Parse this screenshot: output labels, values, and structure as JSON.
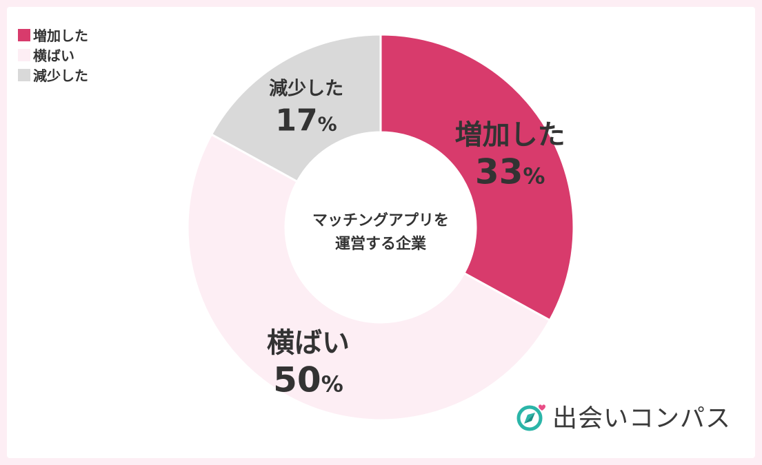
{
  "chart_data": {
    "type": "pie",
    "categories": [
      "増加した",
      "横ばい",
      "減少した"
    ],
    "values": [
      33,
      50,
      17
    ],
    "unit": "%",
    "colors": [
      "#d83b6c",
      "#fdeef4",
      "#d9d9d9"
    ],
    "center_label": [
      "マッチングアプリを",
      "運営する企業"
    ],
    "legend": {
      "placement": "top-left",
      "items": [
        "増加した",
        "横ばい",
        "減少した"
      ]
    }
  },
  "brand": {
    "name": "出会いコンパス",
    "icon": "compass-heart-icon",
    "icon_color": "#2bb5a8",
    "heart_color": "#e84d86"
  },
  "colors": {
    "background": "#fdeef4",
    "card": "#ffffff",
    "text": "#333333"
  }
}
